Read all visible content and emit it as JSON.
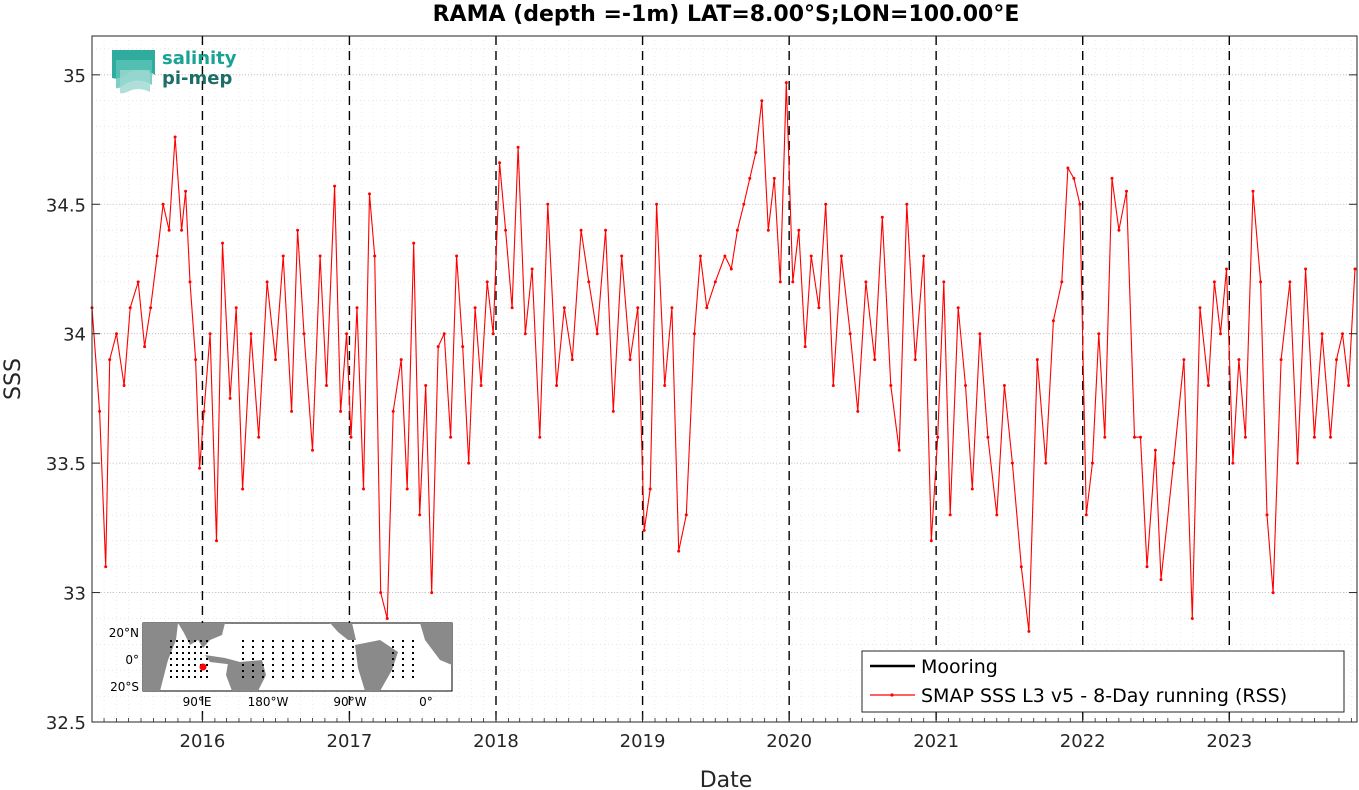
{
  "chart_data": {
    "type": "line",
    "title": "RAMA (depth =-1m) LAT=8.00°S;LON=100.00°E",
    "xlabel": "Date",
    "ylabel": "SSS",
    "xlim": [
      "2015-04-01",
      "2023-11-15"
    ],
    "ylim": [
      32.5,
      35.15
    ],
    "xticks": [
      {
        "date": "2016-01-01",
        "label": "2016"
      },
      {
        "date": "2017-01-01",
        "label": "2017"
      },
      {
        "date": "2018-01-01",
        "label": "2018"
      },
      {
        "date": "2019-01-01",
        "label": "2019"
      },
      {
        "date": "2020-01-01",
        "label": "2020"
      },
      {
        "date": "2021-01-01",
        "label": "2021"
      },
      {
        "date": "2022-01-01",
        "label": "2022"
      },
      {
        "date": "2023-01-01",
        "label": "2023"
      }
    ],
    "yticks": [
      32.5,
      33,
      33.5,
      34,
      34.5,
      35
    ],
    "ytick_labels": [
      "32.5",
      "33",
      "33.5",
      "34",
      "34.5",
      "35"
    ],
    "vlines": [
      "2016-01-01",
      "2017-01-01",
      "2018-01-01",
      "2019-01-01",
      "2020-01-01",
      "2021-01-01",
      "2022-01-01",
      "2023-01-01"
    ],
    "grid": true,
    "legend_position": "bottom-right",
    "series": [
      {
        "name": "Mooring",
        "color": "#000000",
        "x": [],
        "y": []
      },
      {
        "name": "SMAP SSS L3 v5 - 8-Day running (RSS)",
        "color": "#ff0000",
        "x": [
          "2015-04-01",
          "2015-04-20",
          "2015-05-05",
          "2015-05-15",
          "2015-06-01",
          "2015-06-20",
          "2015-07-05",
          "2015-07-25",
          "2015-08-10",
          "2015-08-25",
          "2015-09-10",
          "2015-09-25",
          "2015-10-10",
          "2015-10-25",
          "2015-11-10",
          "2015-11-20",
          "2015-12-01",
          "2015-12-15",
          "2015-12-25",
          "2016-01-05",
          "2016-01-20",
          "2016-02-05",
          "2016-02-20",
          "2016-03-10",
          "2016-03-25",
          "2016-04-10",
          "2016-05-01",
          "2016-05-20",
          "2016-06-10",
          "2016-07-01",
          "2016-07-20",
          "2016-08-10",
          "2016-08-25",
          "2016-09-10",
          "2016-10-01",
          "2016-10-20",
          "2016-11-05",
          "2016-11-25",
          "2016-12-10",
          "2016-12-25",
          "2017-01-05",
          "2017-01-20",
          "2017-02-05",
          "2017-02-20",
          "2017-03-05",
          "2017-03-20",
          "2017-04-05",
          "2017-04-20",
          "2017-05-10",
          "2017-05-25",
          "2017-06-10",
          "2017-06-25",
          "2017-07-10",
          "2017-07-25",
          "2017-08-10",
          "2017-08-25",
          "2017-09-10",
          "2017-09-25",
          "2017-10-10",
          "2017-10-25",
          "2017-11-10",
          "2017-11-25",
          "2017-12-10",
          "2017-12-25",
          "2018-01-10",
          "2018-01-25",
          "2018-02-10",
          "2018-02-25",
          "2018-03-15",
          "2018-04-01",
          "2018-04-20",
          "2018-05-10",
          "2018-06-01",
          "2018-06-20",
          "2018-07-10",
          "2018-08-01",
          "2018-08-20",
          "2018-09-10",
          "2018-10-01",
          "2018-10-20",
          "2018-11-10",
          "2018-12-01",
          "2018-12-20",
          "2019-01-05",
          "2019-01-20",
          "2019-02-05",
          "2019-02-25",
          "2019-03-15",
          "2019-04-01",
          "2019-04-20",
          "2019-05-10",
          "2019-05-25",
          "2019-06-10",
          "2019-07-01",
          "2019-07-25",
          "2019-08-10",
          "2019-08-25",
          "2019-09-10",
          "2019-09-25",
          "2019-10-10",
          "2019-10-25",
          "2019-11-10",
          "2019-11-25",
          "2019-12-10",
          "2019-12-25",
          "2020-01-10",
          "2020-01-25",
          "2020-02-10",
          "2020-02-25",
          "2020-03-15",
          "2020-04-01",
          "2020-04-20",
          "2020-05-10",
          "2020-06-01",
          "2020-06-20",
          "2020-07-10",
          "2020-08-01",
          "2020-08-20",
          "2020-09-10",
          "2020-10-01",
          "2020-10-20",
          "2020-11-10",
          "2020-12-01",
          "2020-12-20",
          "2021-01-05",
          "2021-01-20",
          "2021-02-05",
          "2021-02-25",
          "2021-03-15",
          "2021-04-01",
          "2021-04-20",
          "2021-05-10",
          "2021-06-01",
          "2021-06-20",
          "2021-07-10",
          "2021-08-01",
          "2021-08-20",
          "2021-09-10",
          "2021-10-01",
          "2021-10-20",
          "2021-11-10",
          "2021-11-25",
          "2021-12-10",
          "2021-12-25",
          "2022-01-10",
          "2022-01-25",
          "2022-02-10",
          "2022-02-25",
          "2022-03-15",
          "2022-04-01",
          "2022-04-20",
          "2022-05-10",
          "2022-05-25",
          "2022-06-10",
          "2022-07-01",
          "2022-07-15",
          "2022-08-15",
          "2022-09-10",
          "2022-10-01",
          "2022-10-20",
          "2022-11-10",
          "2022-11-25",
          "2022-12-10",
          "2022-12-25",
          "2023-01-10",
          "2023-01-25",
          "2023-02-10",
          "2023-03-01",
          "2023-03-20",
          "2023-04-05",
          "2023-04-20",
          "2023-05-10",
          "2023-06-01",
          "2023-06-20",
          "2023-07-10",
          "2023-08-01",
          "2023-08-20",
          "2023-09-10",
          "2023-09-25",
          "2023-10-10",
          "2023-10-25",
          "2023-11-10"
        ],
        "y": [
          34.1,
          33.7,
          33.1,
          33.9,
          34.0,
          33.8,
          34.1,
          34.2,
          33.95,
          34.1,
          34.3,
          34.5,
          34.4,
          34.76,
          34.4,
          34.55,
          34.2,
          33.9,
          33.48,
          33.7,
          34.0,
          33.2,
          34.35,
          33.75,
          34.1,
          33.4,
          34.0,
          33.6,
          34.2,
          33.9,
          34.3,
          33.7,
          34.4,
          34.0,
          33.55,
          34.3,
          33.8,
          34.57,
          33.7,
          34.0,
          33.6,
          34.1,
          33.4,
          34.54,
          34.3,
          33.0,
          32.9,
          33.7,
          33.9,
          33.4,
          34.35,
          33.3,
          33.8,
          33.0,
          33.95,
          34.0,
          33.6,
          34.3,
          33.95,
          33.5,
          34.1,
          33.8,
          34.2,
          34.0,
          34.66,
          34.4,
          34.1,
          34.72,
          34.0,
          34.25,
          33.6,
          34.5,
          33.8,
          34.1,
          33.9,
          34.4,
          34.2,
          34.0,
          34.4,
          33.7,
          34.3,
          33.9,
          34.1,
          33.24,
          33.4,
          34.5,
          33.8,
          34.1,
          33.16,
          33.3,
          34.0,
          34.3,
          34.1,
          34.2,
          34.3,
          34.25,
          34.4,
          34.5,
          34.6,
          34.7,
          34.9,
          34.4,
          34.6,
          34.2,
          34.97,
          34.2,
          34.4,
          33.95,
          34.3,
          34.1,
          34.5,
          33.8,
          34.3,
          34.0,
          33.7,
          34.2,
          33.9,
          34.45,
          33.8,
          33.55,
          34.5,
          33.9,
          34.3,
          33.2,
          33.6,
          34.2,
          33.3,
          34.1,
          33.8,
          33.4,
          34.0,
          33.6,
          33.3,
          33.8,
          33.5,
          33.1,
          32.85,
          33.9,
          33.5,
          34.05,
          34.2,
          34.64,
          34.6,
          34.5,
          33.3,
          33.5,
          34.0,
          33.6,
          34.6,
          34.4,
          34.55,
          33.6,
          33.6,
          33.1,
          33.55,
          33.05,
          33.5,
          33.9,
          32.9,
          34.1,
          33.8,
          34.2,
          34.0,
          34.25,
          33.5,
          33.9,
          33.6,
          34.55,
          34.2,
          33.3,
          33.0,
          33.9,
          34.2,
          33.5,
          34.25,
          33.6,
          34.0,
          33.6,
          33.9,
          34.0,
          33.8,
          34.25
        ]
      }
    ],
    "inset_map": {
      "lat_labels": [
        "20°N",
        "0°",
        "20°S"
      ],
      "lon_labels": [
        "90°E",
        "180°W",
        "90°W",
        "0°"
      ]
    }
  },
  "logo": {
    "line1": "salinity",
    "line2": "pi-mep"
  }
}
